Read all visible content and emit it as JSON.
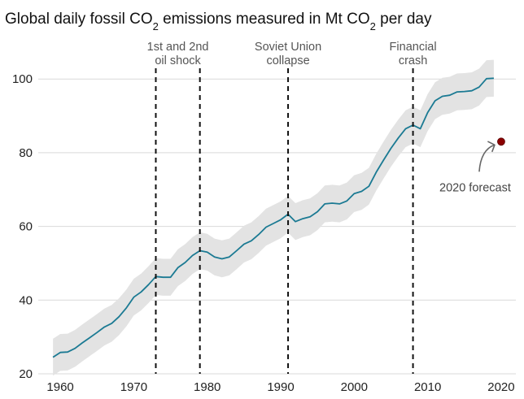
{
  "chart_data": {
    "type": "line",
    "title_parts": {
      "t1": "Global daily fossil CO",
      "s1": "2",
      "t2": " emissions measured in Mt CO",
      "s2": "2",
      "t3": " per day"
    },
    "xlabel": "",
    "ylabel": "",
    "xlim": [
      1957,
      2022
    ],
    "ylim": [
      20,
      106
    ],
    "x_ticks": [
      1960,
      1970,
      1980,
      1990,
      2000,
      2010,
      2020
    ],
    "y_ticks": [
      20,
      40,
      60,
      80,
      100
    ],
    "grid": "horizontal",
    "colors": {
      "line": "#1b7a93",
      "band": "#e3e3e3",
      "grid": "#d9d9d9",
      "marker": "#8b0000",
      "arrow": "#666666"
    },
    "series": [
      {
        "x": [
          1959,
          1960,
          1961,
          1962,
          1963,
          1964,
          1965,
          1966,
          1967,
          1968,
          1969,
          1970,
          1971,
          1972,
          1973,
          1974,
          1975,
          1976,
          1977,
          1978,
          1979,
          1980,
          1981,
          1982,
          1983,
          1984,
          1985,
          1986,
          1987,
          1988,
          1989,
          1990,
          1991,
          1992,
          1993,
          1994,
          1995,
          1996,
          1997,
          1998,
          1999,
          2000,
          2001,
          2002,
          2003,
          2004,
          2005,
          2006,
          2007,
          2008,
          2009,
          2010,
          2011,
          2012,
          2013,
          2014,
          2015,
          2016,
          2017,
          2018,
          2019
        ],
        "values": [
          24.5,
          25.8,
          25.9,
          26.9,
          28.4,
          29.8,
          31.2,
          32.7,
          33.7,
          35.5,
          37.9,
          40.8,
          42.2,
          44.2,
          46.4,
          46.2,
          46.2,
          48.8,
          50.2,
          52.1,
          53.4,
          53.0,
          51.7,
          51.2,
          51.7,
          53.4,
          55.2,
          56.1,
          57.8,
          59.8,
          60.8,
          61.8,
          63.3,
          61.3,
          62.1,
          62.6,
          64.0,
          66.1,
          66.3,
          66.1,
          66.9,
          68.9,
          69.5,
          70.9,
          74.7,
          78.0,
          81.2,
          84.0,
          86.5,
          87.5,
          86.5,
          90.9,
          94.1,
          95.3,
          95.6,
          96.5,
          96.6,
          96.8,
          97.8,
          100.1,
          100.2
        ],
        "uncertainty": 5
      }
    ],
    "forecast": {
      "x": 2020,
      "value": 83,
      "label": "2020 forecast"
    },
    "events": [
      {
        "x": 1973,
        "line1": "1st and 2nd",
        "line2": "oil shock"
      },
      {
        "x": 1979,
        "line1": "",
        "line2": ""
      },
      {
        "x": 1991,
        "line1": "Soviet Union",
        "line2": "collapse"
      },
      {
        "x": 2008,
        "line1": "Financial",
        "line2": "crash"
      }
    ]
  }
}
